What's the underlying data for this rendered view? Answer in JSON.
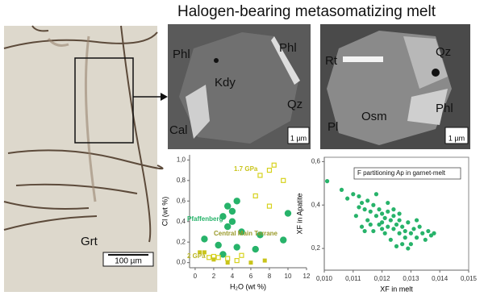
{
  "title": "Halogen-bearing metasomatizing melt",
  "left_photo": {
    "label": "Grt",
    "scale": "100 µm"
  },
  "middle_photo": {
    "labels": [
      "Phl",
      "Phl",
      "Kdy",
      "Qz",
      "Cal"
    ],
    "scale": "1 µm"
  },
  "right_photo": {
    "labels": [
      "Rt",
      "Qz",
      "Pl",
      "Osm",
      "Phl"
    ],
    "scale": "1 µm"
  },
  "chart_data": [
    {
      "type": "scatter",
      "xlabel": "H₂O (wt %)",
      "ylabel": "Cl (wt %)",
      "xlim": [
        -0.6,
        12
      ],
      "ylim": [
        -0.05,
        1.05
      ],
      "xticks": [
        0,
        2,
        4,
        6,
        8,
        10,
        12
      ],
      "yticks": [
        {
          "value": 0,
          "label": "0,0"
        },
        {
          "value": 0.2,
          "label": "0,2"
        },
        {
          "value": 0.4,
          "label": "0,4"
        },
        {
          "value": 0.6,
          "label": "0,6"
        },
        {
          "value": 0.8,
          "label": "0,8"
        },
        {
          "value": 1,
          "label": "1,0"
        }
      ],
      "annotations": [
        "2 GPa"
      ],
      "series": [
        {
          "name": "Pfaffenberg",
          "color": "#27b36a",
          "marker": "circle",
          "x": [
            3.5,
            3,
            4,
            4.5,
            3.5,
            4,
            5,
            1,
            2.5,
            3,
            6.5,
            7,
            10,
            9.5,
            4.5
          ],
          "values": [
            0.55,
            0.45,
            0.5,
            0.6,
            0.35,
            0.4,
            0.3,
            0.23,
            0.17,
            0.08,
            0.13,
            0.27,
            0.48,
            0.22,
            0.15
          ]
        },
        {
          "name": "1.7 GPa",
          "color": "#d6d21e",
          "marker": "square-open",
          "x": [
            7,
            8,
            8.5,
            9.5,
            6.5,
            8,
            2,
            2.5,
            3.5,
            1.5,
            4.5,
            5
          ],
          "values": [
            0.85,
            0.9,
            0.95,
            0.8,
            0.65,
            0.55,
            0.06,
            0.05,
            0.04,
            0.05,
            0.02,
            0.07
          ]
        },
        {
          "name": "Central Main Terrane",
          "color": "#c9c41a",
          "marker": "square",
          "x": [
            0.5,
            1,
            2,
            6,
            7.5,
            3.5
          ],
          "values": [
            0.1,
            0.1,
            0.03,
            0.0,
            0.02,
            0.0
          ]
        }
      ]
    },
    {
      "type": "scatter",
      "xlabel": "XF in melt",
      "ylabel": "XF in Apatite",
      "xlim": [
        0.01,
        0.015
      ],
      "ylim": [
        0.1,
        0.62
      ],
      "xticks": [
        {
          "value": 0.01,
          "label": "0,010"
        },
        {
          "value": 0.011,
          "label": "0,011"
        },
        {
          "value": 0.012,
          "label": "0,012"
        },
        {
          "value": 0.013,
          "label": "0,013"
        },
        {
          "value": 0.014,
          "label": "0,014"
        },
        {
          "value": 0.015,
          "label": "0,015"
        }
      ],
      "yticks": [
        {
          "value": 0.2,
          "label": "0,2"
        },
        {
          "value": 0.4,
          "label": "0,4"
        },
        {
          "value": 0.6,
          "label": "0,6"
        }
      ],
      "annotations": [
        "F partitioning Ap in garnet-melt"
      ],
      "series": [
        {
          "color": "#27b36a",
          "marker": "circle",
          "x": [
            0.0101,
            0.0106,
            0.0108,
            0.011,
            0.0112,
            0.0113,
            0.0114,
            0.0115,
            0.0116,
            0.0117,
            0.0118,
            0.0119,
            0.012,
            0.012,
            0.0121,
            0.0122,
            0.0122,
            0.0123,
            0.0124,
            0.0124,
            0.0125,
            0.0126,
            0.0126,
            0.0127,
            0.0128,
            0.0128,
            0.0129,
            0.013,
            0.013,
            0.0131,
            0.0132,
            0.0133,
            0.0134,
            0.0135,
            0.0136,
            0.0137,
            0.0138,
            0.0111,
            0.0113,
            0.0115,
            0.0117,
            0.0119,
            0.0121,
            0.0123,
            0.0125,
            0.0127,
            0.0129,
            0.0118,
            0.0112,
            0.0114,
            0.0116,
            0.0122,
            0.0124,
            0.012,
            0.0126,
            0.0132
          ],
          "values": [
            0.51,
            0.47,
            0.43,
            0.45,
            0.44,
            0.41,
            0.38,
            0.42,
            0.37,
            0.4,
            0.35,
            0.38,
            0.36,
            0.32,
            0.34,
            0.3,
            0.37,
            0.33,
            0.29,
            0.35,
            0.31,
            0.27,
            0.33,
            0.3,
            0.25,
            0.28,
            0.32,
            0.27,
            0.22,
            0.29,
            0.25,
            0.3,
            0.27,
            0.24,
            0.28,
            0.26,
            0.27,
            0.35,
            0.3,
            0.33,
            0.28,
            0.31,
            0.27,
            0.24,
            0.21,
            0.22,
            0.2,
            0.45,
            0.39,
            0.28,
            0.31,
            0.41,
            0.38,
            0.29,
            0.36,
            0.33
          ]
        }
      ]
    }
  ]
}
